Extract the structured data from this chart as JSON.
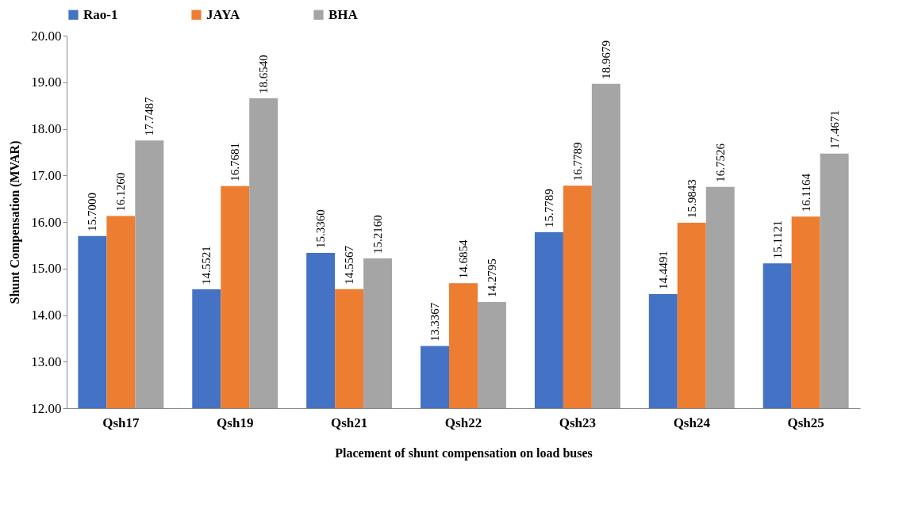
{
  "chart_data": {
    "type": "bar",
    "xlabel": "Placement of shunt compensation on load buses",
    "ylabel": "Shunt Compensation (MVAR)",
    "categories": [
      "Qsh17",
      "Qsh19",
      "Qsh21",
      "Qsh22",
      "Qsh23",
      "Qsh24",
      "Qsh25"
    ],
    "series": [
      {
        "name": "Rao-1",
        "color": "#4472c4",
        "values": [
          15.7,
          14.5521,
          15.336,
          13.3367,
          15.7789,
          14.4491,
          15.1121
        ],
        "value_labels": [
          "15.7000",
          "14.5521",
          "15.3360",
          "13.3367",
          "15.7789",
          "14.4491",
          "15.1121"
        ]
      },
      {
        "name": "JAYA",
        "color": "#ed7d31",
        "values": [
          16.126,
          16.7681,
          14.5567,
          14.6854,
          16.7789,
          15.9843,
          16.1164
        ],
        "value_labels": [
          "16.1260",
          "16.7681",
          "14.5567",
          "14.6854",
          "16.7789",
          "15.9843",
          "16.1164"
        ]
      },
      {
        "name": "BHA",
        "color": "#a5a5a5",
        "values": [
          17.7487,
          18.654,
          15.216,
          14.2795,
          18.9679,
          16.7526,
          17.4671
        ],
        "value_labels": [
          "17.7487",
          "18.6540",
          "15.2160",
          "14.2795",
          "18.9679",
          "16.7526",
          "17.4671"
        ]
      }
    ],
    "ylim": [
      12,
      20
    ],
    "yticks": [
      {
        "value": 12,
        "label": "12.00"
      },
      {
        "value": 13,
        "label": "13.00"
      },
      {
        "value": 14,
        "label": "14.00"
      },
      {
        "value": 15,
        "label": "15.00"
      },
      {
        "value": 16,
        "label": "16.00"
      },
      {
        "value": 17,
        "label": "17.00"
      },
      {
        "value": 18,
        "label": "18.00"
      },
      {
        "value": 19,
        "label": "19.00"
      },
      {
        "value": 20,
        "label": "20.00"
      }
    ],
    "legend": "top"
  }
}
